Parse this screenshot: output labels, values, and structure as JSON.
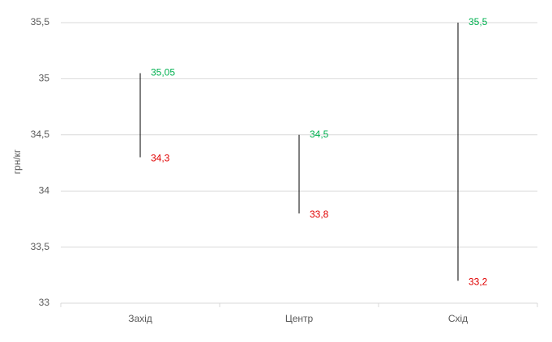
{
  "chart_data": {
    "type": "range",
    "y_label": "грн/кг",
    "categories": [
      "Захід",
      "Центр",
      "Схід"
    ],
    "series": [
      {
        "name": "max",
        "color": "#00b050",
        "values": [
          35.05,
          34.5,
          35.5
        ],
        "value_labels": [
          "35,05",
          "34,5",
          "35,5"
        ]
      },
      {
        "name": "min",
        "color": "#e00000",
        "values": [
          34.3,
          33.8,
          33.2
        ],
        "value_labels": [
          "34,3",
          "33,8",
          "33,2"
        ]
      }
    ],
    "line_color": "#000000",
    "ylim": [
      33,
      35.5
    ],
    "yticks": [
      33,
      {
        "value": 33.5,
        "label": "33,5"
      },
      34,
      {
        "value": 34.5,
        "label": "34,5"
      },
      35,
      {
        "value": 35.5,
        "label": "35,5"
      }
    ],
    "grid": true
  }
}
